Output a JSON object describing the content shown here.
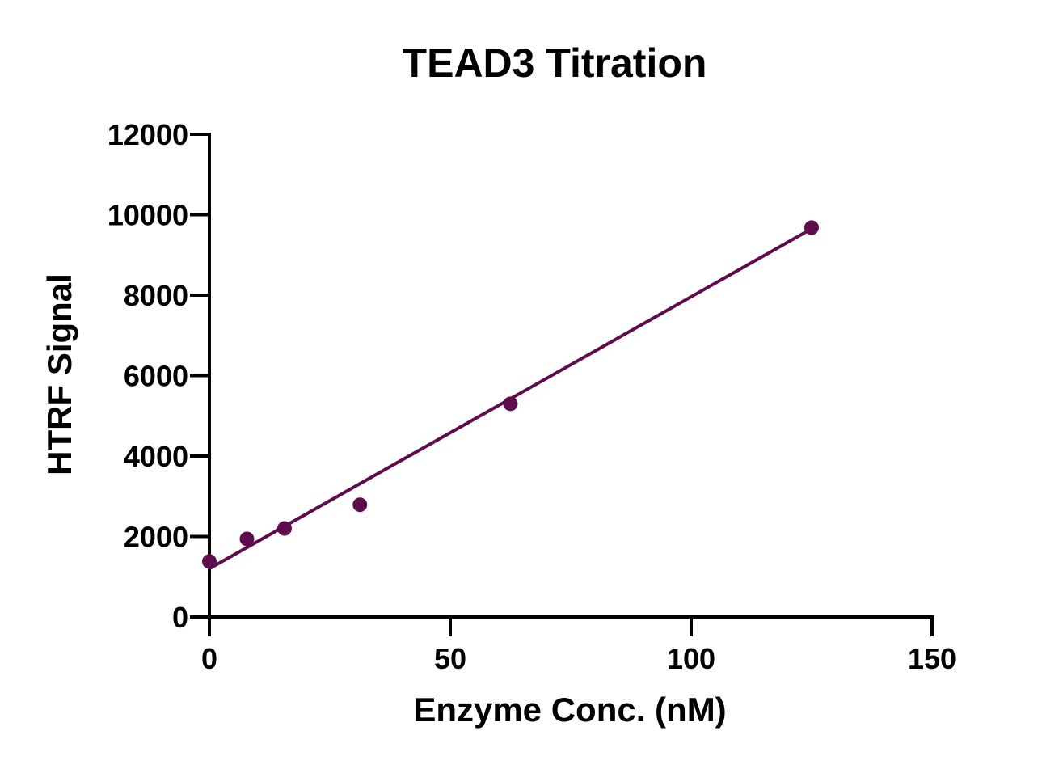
{
  "chart_data": {
    "type": "scatter",
    "title": "TEAD3 Titration",
    "xlabel": "Enzyme Conc. (nM)",
    "ylabel": "HTRF Signal",
    "xlim": [
      0,
      150
    ],
    "ylim": [
      0,
      12000
    ],
    "x_ticks": [
      0,
      50,
      100,
      150
    ],
    "y_ticks": [
      0,
      2000,
      4000,
      6000,
      8000,
      10000,
      12000
    ],
    "grid": false,
    "legend": "none",
    "series": [
      {
        "x": [
          0,
          7.8,
          15.6,
          31.25,
          62.5,
          125
        ],
        "y": [
          1380,
          1940,
          2200,
          2790,
          5300,
          9680
        ],
        "color": "#5e0c4e"
      }
    ],
    "fit_line": {
      "type": "linear",
      "x": [
        0,
        125
      ],
      "y": [
        1200,
        9650
      ],
      "color": "#5e0c4e"
    }
  }
}
